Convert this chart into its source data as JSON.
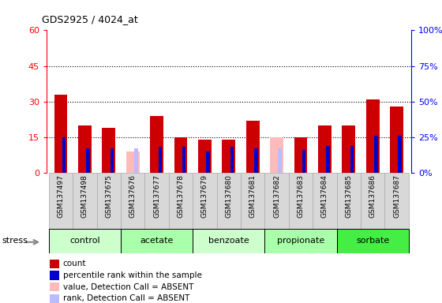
{
  "title": "GDS2925 / 4024_at",
  "samples": [
    "GSM137497",
    "GSM137498",
    "GSM137675",
    "GSM137676",
    "GSM137677",
    "GSM137678",
    "GSM137679",
    "GSM137680",
    "GSM137681",
    "GSM137682",
    "GSM137683",
    "GSM137684",
    "GSM137685",
    "GSM137686",
    "GSM137687"
  ],
  "count_values": [
    33,
    20,
    19,
    0,
    24,
    15,
    14,
    14,
    22,
    0,
    15,
    20,
    20,
    31,
    28
  ],
  "count_absent": [
    0,
    0,
    0,
    9,
    0,
    0,
    0,
    0,
    0,
    15,
    0,
    0,
    0,
    0,
    0
  ],
  "rank_values": [
    25,
    17,
    17,
    0,
    18,
    18,
    15,
    18,
    17,
    0,
    16,
    19,
    19,
    26,
    26
  ],
  "rank_absent": [
    0,
    0,
    0,
    17,
    0,
    0,
    0,
    0,
    0,
    17,
    0,
    0,
    0,
    0,
    0
  ],
  "ylim_left": [
    0,
    60
  ],
  "ylim_right": [
    0,
    100
  ],
  "yticks_left": [
    0,
    15,
    30,
    45,
    60
  ],
  "yticks_right": [
    0,
    25,
    50,
    75,
    100
  ],
  "ytick_labels_right": [
    "0%",
    "25%",
    "50%",
    "75%",
    "100%"
  ],
  "hlines": [
    15,
    30,
    45
  ],
  "groups": [
    {
      "name": "control",
      "start": 0,
      "end": 2,
      "color": "#ccffcc"
    },
    {
      "name": "acetate",
      "start": 3,
      "end": 5,
      "color": "#aaffaa"
    },
    {
      "name": "benzoate",
      "start": 6,
      "end": 8,
      "color": "#ccffcc"
    },
    {
      "name": "propionate",
      "start": 9,
      "end": 11,
      "color": "#aaffaa"
    },
    {
      "name": "sorbate",
      "start": 12,
      "end": 14,
      "color": "#44ee44"
    }
  ],
  "count_color": "#cc0000",
  "count_absent_color": "#ffbbbb",
  "rank_color": "#0000cc",
  "rank_absent_color": "#bbbbff",
  "plot_bg_color": "#ffffff",
  "sample_bg_color": "#d8d8d8",
  "legend_items": [
    {
      "label": "count",
      "color": "#cc0000"
    },
    {
      "label": "percentile rank within the sample",
      "color": "#0000cc"
    },
    {
      "label": "value, Detection Call = ABSENT",
      "color": "#ffbbbb"
    },
    {
      "label": "rank, Detection Call = ABSENT",
      "color": "#bbbbff"
    }
  ]
}
